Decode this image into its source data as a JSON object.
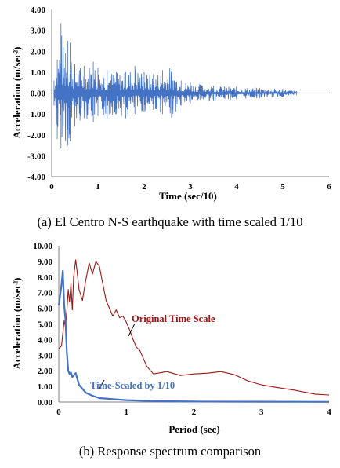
{
  "chart_data": [
    {
      "type": "line",
      "caption": "(a) El Centro N-S earthquake with time scaled 1/10",
      "xlabel": "Time (sec/10)",
      "ylabel": "Acceleration (m/sec²)",
      "xlim": [
        0,
        6
      ],
      "ylim": [
        -4,
        4
      ],
      "x_ticks": [
        "0",
        "1",
        "2",
        "3",
        "4",
        "5",
        "6"
      ],
      "y_ticks": [
        "-4.00",
        "-3.00",
        "-2.00",
        "-1.00",
        "0.00",
        "1.00",
        "2.00",
        "3.00",
        "4.00"
      ],
      "grid": false,
      "series": [
        {
          "color": "#4472c4",
          "note": "dense oscillating accelerogram; approximate peak envelope values read from the figure",
          "x": [
            0.05,
            0.12,
            0.2,
            0.25,
            0.3,
            0.35,
            0.4,
            0.5,
            0.7,
            0.9,
            1.0,
            1.2,
            1.4,
            1.6,
            1.8,
            2.0,
            2.2,
            2.4,
            2.6,
            2.8,
            3.0,
            3.5,
            4.0,
            4.5,
            5.0,
            5.3
          ],
          "peak_pos": [
            0.6,
            1.6,
            3.35,
            2.2,
            1.9,
            2.5,
            2.4,
            1.4,
            1.3,
            1.5,
            1.2,
            1.1,
            1.0,
            1.0,
            1.3,
            1.0,
            0.9,
            1.1,
            1.3,
            0.6,
            0.5,
            0.35,
            0.3,
            0.25,
            0.2,
            0.1
          ],
          "peak_neg": [
            -0.6,
            -2.2,
            -2.65,
            -1.6,
            -2.3,
            -2.5,
            -2.3,
            -1.6,
            -1.2,
            -1.4,
            -1.1,
            -1.2,
            -1.0,
            -1.2,
            -1.0,
            -0.9,
            -0.8,
            -1.0,
            -1.2,
            -0.6,
            -0.5,
            -0.35,
            -0.3,
            -0.25,
            -0.2,
            -0.1
          ]
        }
      ]
    },
    {
      "type": "line",
      "caption": "(b) Response spectrum comparison",
      "xlabel": "Period (sec)",
      "ylabel": "Acceleration (m/sec²)",
      "xlim": [
        0,
        4
      ],
      "ylim": [
        0,
        10
      ],
      "x_ticks": [
        "0",
        "1",
        "2",
        "3",
        "4"
      ],
      "y_ticks": [
        "0.00",
        "1.00",
        "2.00",
        "3.00",
        "4.00",
        "5.00",
        "6.00",
        "7.00",
        "8.00",
        "9.00",
        "10.00"
      ],
      "grid": false,
      "series": [
        {
          "name": "Original Time Scale",
          "color": "#a31515",
          "x": [
            0.0,
            0.04,
            0.08,
            0.1,
            0.12,
            0.14,
            0.16,
            0.18,
            0.2,
            0.22,
            0.25,
            0.27,
            0.3,
            0.35,
            0.4,
            0.45,
            0.5,
            0.55,
            0.6,
            0.65,
            0.7,
            0.75,
            0.8,
            0.85,
            0.9,
            0.95,
            1.0,
            1.05,
            1.1,
            1.15,
            1.2,
            1.3,
            1.4,
            1.6,
            1.8,
            2.0,
            2.2,
            2.4,
            2.6,
            2.8,
            3.0,
            3.2,
            3.5,
            3.8,
            4.0
          ],
          "y": [
            3.4,
            3.6,
            5.2,
            4.8,
            5.8,
            7.2,
            6.4,
            7.6,
            5.9,
            8.0,
            9.1,
            8.4,
            7.2,
            6.5,
            7.8,
            8.9,
            8.2,
            9.0,
            8.7,
            7.6,
            6.5,
            6.0,
            5.5,
            5.9,
            5.4,
            5.5,
            5.1,
            4.6,
            4.0,
            3.5,
            3.3,
            2.3,
            1.8,
            1.95,
            1.7,
            1.8,
            1.85,
            1.95,
            1.75,
            1.35,
            1.1,
            0.95,
            0.75,
            0.5,
            0.45
          ]
        },
        {
          "name": "Time-Scaled by 1/10",
          "color": "#4472c4",
          "x": [
            0.0,
            0.02,
            0.04,
            0.06,
            0.08,
            0.1,
            0.12,
            0.14,
            0.16,
            0.18,
            0.2,
            0.25,
            0.3,
            0.4,
            0.5,
            0.6,
            0.8,
            1.0,
            1.5,
            2.0,
            3.0,
            4.0
          ],
          "y": [
            6.2,
            6.8,
            7.5,
            8.4,
            6.2,
            5.3,
            3.2,
            2.0,
            1.8,
            1.9,
            1.6,
            1.85,
            1.1,
            0.6,
            0.4,
            0.25,
            0.18,
            0.12,
            0.05,
            0.03,
            0.02,
            0.01
          ]
        }
      ]
    }
  ]
}
